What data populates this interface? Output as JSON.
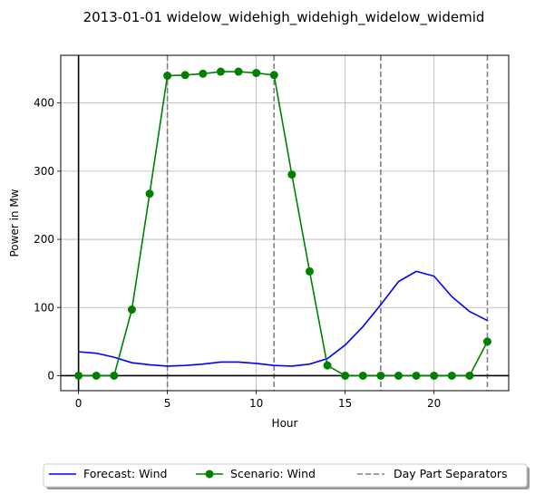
{
  "chart_data": {
    "type": "line",
    "title": "2013-01-01 widelow_widehigh_widehigh_widelow_widemid",
    "xlabel": "Hour",
    "ylabel": "Power in Mw",
    "xlim": [
      -1,
      24.2
    ],
    "ylim": [
      -22,
      470
    ],
    "xticks": [
      0,
      5,
      10,
      15,
      20
    ],
    "yticks": [
      0,
      100,
      200,
      300,
      400
    ],
    "grid": true,
    "legend_position": "bottom-center",
    "separators": [
      5,
      11,
      17,
      23
    ],
    "zero_lines": {
      "x": 0,
      "y": 0
    },
    "series": [
      {
        "name": "Forecast: Wind",
        "color": "#0000ff",
        "marker": "none",
        "x": [
          0,
          1,
          2,
          3,
          4,
          5,
          6,
          7,
          8,
          9,
          10,
          11,
          12,
          13,
          14,
          15,
          16,
          17,
          18,
          19,
          20,
          21,
          22,
          23
        ],
        "values": [
          35,
          33,
          27,
          19,
          16,
          14,
          15,
          17,
          20,
          20,
          18,
          15,
          14,
          17,
          25,
          45,
          72,
          104,
          138,
          153,
          146,
          116,
          94,
          81
        ]
      },
      {
        "name": "Scenario: Wind",
        "color": "#008000",
        "marker": "circle",
        "x": [
          0,
          1,
          2,
          3,
          4,
          5,
          6,
          7,
          8,
          9,
          10,
          11,
          12,
          13,
          14,
          15,
          16,
          17,
          18,
          19,
          20,
          21,
          22,
          23
        ],
        "values": [
          0,
          0,
          0,
          97,
          267,
          440,
          441,
          443,
          446,
          446,
          444,
          441,
          295,
          153,
          15,
          0,
          0,
          0,
          0,
          0,
          0,
          0,
          0,
          50
        ]
      }
    ],
    "separator_series": {
      "name": "Day Part Separators",
      "color": "#808080"
    }
  }
}
